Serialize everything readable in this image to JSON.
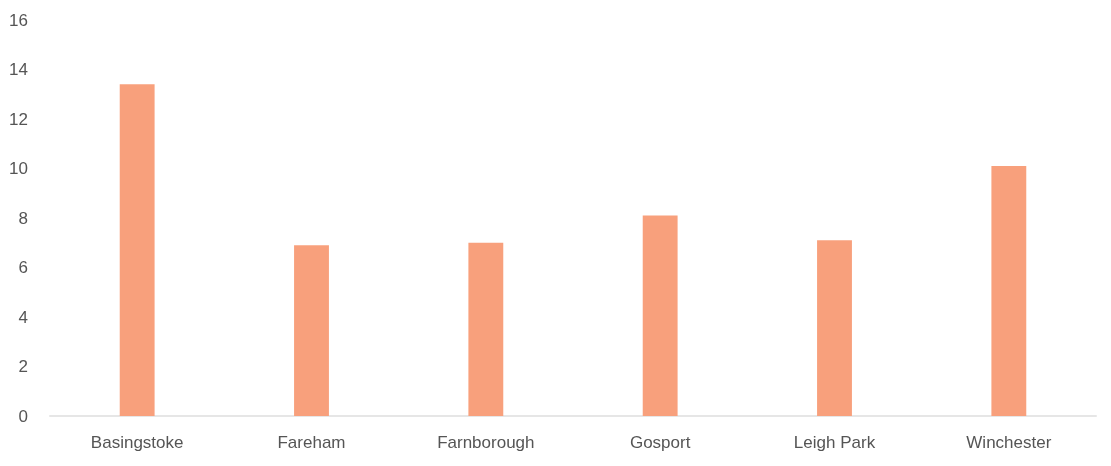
{
  "chart_data": {
    "type": "bar",
    "categories": [
      "Basingstoke",
      "Fareham",
      "Farnborough",
      "Gosport",
      "Leigh Park",
      "Winchester"
    ],
    "values": [
      13.4,
      6.9,
      7.0,
      8.1,
      7.1,
      10.1
    ],
    "color": "#f8a07c",
    "ylim": [
      0,
      16
    ],
    "yticks": [
      0,
      2,
      4,
      6,
      8,
      10,
      12,
      14,
      16
    ],
    "grid": false
  }
}
